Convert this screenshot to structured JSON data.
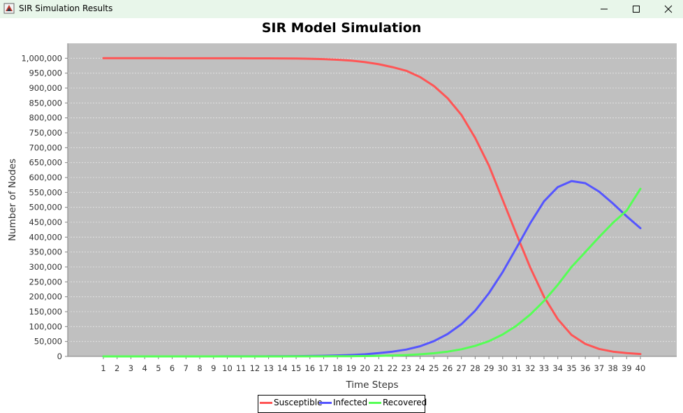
{
  "window": {
    "title": "SIR Simulation Results",
    "icons": {
      "app": "java-app-icon",
      "minimize": "minimize-icon",
      "maximize": "maximize-icon",
      "close": "close-icon"
    },
    "titlebar_color": "#e8f6ea"
  },
  "chart_data": {
    "type": "line",
    "title": "SIR Model Simulation",
    "xlabel": "Time Steps",
    "ylabel": "Number of Nodes",
    "categories": [
      "1",
      "2",
      "3",
      "4",
      "5",
      "6",
      "7",
      "8",
      "9",
      "10",
      "11",
      "12",
      "13",
      "14",
      "15",
      "16",
      "17",
      "18",
      "19",
      "20",
      "21",
      "22",
      "23",
      "24",
      "25",
      "26",
      "27",
      "28",
      "29",
      "30",
      "31",
      "32",
      "33",
      "34",
      "35",
      "36",
      "37",
      "38",
      "39",
      "40"
    ],
    "ylim": [
      0,
      1050000
    ],
    "yticks": [
      "0",
      "50,000",
      "100,000",
      "150,000",
      "200,000",
      "250,000",
      "300,000",
      "350,000",
      "400,000",
      "450,000",
      "500,000",
      "550,000",
      "600,000",
      "650,000",
      "700,000",
      "750,000",
      "800,000",
      "850,000",
      "900,000",
      "950,000",
      "1,000,000"
    ],
    "grid": true,
    "legend_position": "bottom",
    "plot_background": "#c0c0c0",
    "series": [
      {
        "name": "Susceptible",
        "color": "#ff5555",
        "values": [
          999990,
          999985,
          999980,
          999975,
          999970,
          999960,
          999950,
          999930,
          999900,
          999860,
          999800,
          999700,
          999550,
          999300,
          998900,
          998200,
          997000,
          995000,
          992000,
          987000,
          980000,
          970000,
          958000,
          937000,
          907000,
          866000,
          810000,
          733000,
          640000,
          525000,
          410000,
          298000,
          200000,
          125000,
          72000,
          42000,
          25000,
          16000,
          11000,
          8000
        ]
      },
      {
        "name": "Infected",
        "color": "#5555ff",
        "values": [
          10,
          15,
          20,
          25,
          35,
          45,
          60,
          80,
          110,
          150,
          200,
          280,
          400,
          600,
          900,
          1400,
          2000,
          3200,
          4800,
          7000,
          11000,
          16000,
          23000,
          34000,
          51000,
          75000,
          108000,
          153000,
          212000,
          283000,
          364000,
          447000,
          520000,
          568000,
          588000,
          581000,
          553000,
          513000,
          470000,
          430000
        ]
      },
      {
        "name": "Recovered",
        "color": "#55ff55",
        "values": [
          0,
          1,
          2,
          3,
          5,
          7,
          10,
          13,
          18,
          25,
          35,
          50,
          70,
          100,
          150,
          230,
          350,
          530,
          800,
          1200,
          1900,
          2900,
          4500,
          7000,
          10500,
          16000,
          24000,
          35500,
          51000,
          73500,
          103000,
          140500,
          186000,
          240000,
          300000,
          350000,
          400000,
          448000,
          489000,
          562000
        ]
      }
    ]
  }
}
